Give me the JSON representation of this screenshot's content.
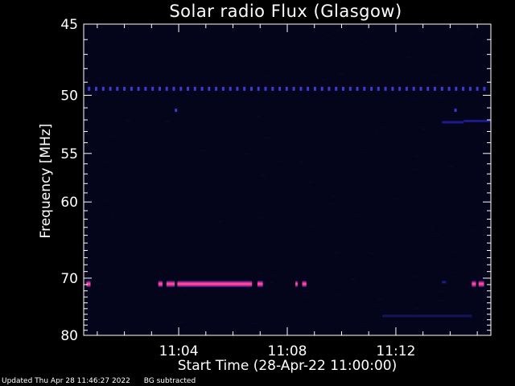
{
  "footer": {
    "updated": "Updated Thu Apr 28 11:46:27 2022",
    "note": "BG subtracted"
  },
  "chart_data": {
    "type": "heatmap",
    "title": "Solar radio Flux (Glasgow)",
    "ylabel": "Frequency [MHz]",
    "xlabel": "Start Time (28-Apr-22 11:00:00)",
    "x_unit": "minutes after 11:00:00",
    "xlim": [
      0.5,
      15.5
    ],
    "ylim": [
      45,
      80
    ],
    "y_scale": "reciprocal",
    "x_ticks": [
      {
        "value": 4,
        "label": "11:04"
      },
      {
        "value": 8,
        "label": "11:08"
      },
      {
        "value": 12,
        "label": "11:12"
      }
    ],
    "y_ticks": [
      {
        "value": 45,
        "label": "45"
      },
      {
        "value": 50,
        "label": "50"
      },
      {
        "value": 55,
        "label": "55"
      },
      {
        "value": 60,
        "label": "60"
      },
      {
        "value": 70,
        "label": "70"
      },
      {
        "value": 80,
        "label": "80"
      }
    ],
    "colors": {
      "background": "#04041a",
      "dot": "#3a3ad6",
      "weak": "#1a1a8a",
      "strong": "#e0308a",
      "core": "#ff4a9a"
    },
    "features": [
      {
        "kind": "dotted",
        "freq": 49.5,
        "t_start": 0.7,
        "t_end": 15.4,
        "step": 0.26
      },
      {
        "kind": "dot",
        "freq": 51.2,
        "t": 3.9
      },
      {
        "kind": "dot",
        "freq": 51.2,
        "t": 14.2
      },
      {
        "kind": "band",
        "freq": 52.2,
        "t_start": 13.7,
        "t_end": 14.5,
        "intensity": "weak"
      },
      {
        "kind": "band",
        "freq": 52.1,
        "t_start": 14.5,
        "t_end": 15.5,
        "intensity": "weak"
      },
      {
        "kind": "band",
        "freq": 70.9,
        "t_start": 0.6,
        "t_end": 0.75,
        "intensity": "strong"
      },
      {
        "kind": "band",
        "freq": 70.9,
        "t_start": 3.25,
        "t_end": 3.4,
        "intensity": "strong"
      },
      {
        "kind": "band",
        "freq": 70.9,
        "t_start": 3.55,
        "t_end": 3.85,
        "intensity": "strong"
      },
      {
        "kind": "band",
        "freq": 70.9,
        "t_start": 3.95,
        "t_end": 6.7,
        "intensity": "strong"
      },
      {
        "kind": "band",
        "freq": 70.9,
        "t_start": 6.9,
        "t_end": 7.1,
        "intensity": "strong"
      },
      {
        "kind": "band",
        "freq": 70.9,
        "t_start": 8.3,
        "t_end": 8.38,
        "intensity": "strong"
      },
      {
        "kind": "band",
        "freq": 70.9,
        "t_start": 8.55,
        "t_end": 8.7,
        "intensity": "strong"
      },
      {
        "kind": "band",
        "freq": 70.6,
        "t_start": 13.7,
        "t_end": 13.85,
        "intensity": "weak"
      },
      {
        "kind": "band",
        "freq": 70.9,
        "t_start": 14.8,
        "t_end": 14.95,
        "intensity": "strong"
      },
      {
        "kind": "band",
        "freq": 70.9,
        "t_start": 15.05,
        "t_end": 15.25,
        "intensity": "strong"
      },
      {
        "kind": "band",
        "freq": 76.3,
        "t_start": 11.5,
        "t_end": 14.8,
        "intensity": "faint"
      }
    ]
  }
}
